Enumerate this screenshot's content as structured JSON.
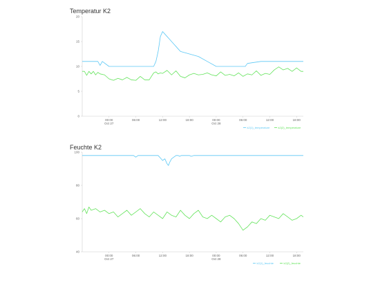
{
  "chart_data": [
    {
      "type": "line",
      "title": "Temperatur K2",
      "ylim": [
        0,
        20
      ],
      "yticks": [
        "0",
        "5",
        "10",
        "15",
        "20"
      ],
      "x_range": [
        "Oct 27 18:00",
        "Oct 28 19:00"
      ],
      "xticks": [
        {
          "label": "00:00",
          "sublabel": "Oct 27"
        },
        {
          "label": "06:00",
          "sublabel": ""
        },
        {
          "label": "12:00",
          "sublabel": ""
        },
        {
          "label": "18:00",
          "sublabel": ""
        },
        {
          "label": "00:00",
          "sublabel": "Oct 28"
        },
        {
          "label": "06:00",
          "sublabel": ""
        },
        {
          "label": "12:00",
          "sublabel": ""
        },
        {
          "label": "18:00",
          "sublabel": ""
        }
      ],
      "grid": false,
      "legend_position": "bottom-right",
      "series": [
        {
          "name": "k2(1)_temperature",
          "color": "#5bc8f5",
          "x_hours": [
            0,
            2.5,
            3.5,
            4.0,
            4.5,
            6.0,
            16.0,
            16.5,
            17.0,
            17.5,
            18.0,
            18.5,
            19.0,
            19.5,
            20.0,
            20.5,
            21.0,
            21.5,
            22.0,
            24.0,
            26.0,
            28.0,
            30.0,
            36.5,
            37.0,
            40.0,
            46.0,
            49.5
          ],
          "values": [
            11,
            11,
            11,
            10.2,
            11,
            10,
            10,
            11,
            13,
            16,
            17,
            16.5,
            16,
            15.5,
            15,
            14.5,
            14,
            13.5,
            13,
            12.5,
            12,
            11,
            10,
            10,
            10.6,
            11,
            11,
            11
          ]
        },
        {
          "name": "k2(2)_temperature",
          "color": "#62e35a",
          "x_hours": [
            0,
            0.5,
            1.0,
            1.5,
            2.0,
            2.5,
            3.0,
            3.5,
            4.0,
            5.0,
            6.0,
            7.0,
            8.0,
            9.0,
            10.0,
            11.0,
            12.0,
            13.0,
            14.0,
            15.0,
            16.0,
            16.5,
            17.0,
            17.5,
            18.0,
            19.0,
            20.0,
            21.0,
            22.0,
            23.0,
            24.0,
            25.0,
            26.0,
            27.0,
            28.0,
            29.0,
            30.0,
            31.0,
            32.0,
            33.0,
            34.0,
            35.0,
            36.0,
            37.0,
            38.0,
            39.0,
            40.0,
            41.0,
            42.0,
            43.0,
            44.0,
            45.0,
            46.0,
            47.0,
            48.0,
            49.0,
            49.5
          ],
          "values": [
            9,
            9,
            8.2,
            9,
            8.5,
            9,
            8.3,
            8.8,
            8.5,
            8.3,
            7.5,
            7.2,
            7.6,
            7.3,
            7.8,
            7.3,
            7.2,
            8,
            7.3,
            7.3,
            8.7,
            8.9,
            8.5,
            8.7,
            8.6,
            9.2,
            8.3,
            9.1,
            8.0,
            7.7,
            8.3,
            8.6,
            8.3,
            8.4,
            8.7,
            8.3,
            8.1,
            8.9,
            8.2,
            8.4,
            8.1,
            8.7,
            8.0,
            8.5,
            8.3,
            9.1,
            8.2,
            8.6,
            8.4,
            9.3,
            9.9,
            9.3,
            9.6,
            9.0,
            9.7,
            9.0,
            9.0
          ]
        }
      ]
    },
    {
      "type": "line",
      "title": "Feuchte K2",
      "ylim": [
        40,
        100
      ],
      "yticks": [
        "40",
        "60",
        "80",
        "100"
      ],
      "x_range": [
        "Oct 27 18:00",
        "Oct 28 19:00"
      ],
      "xticks": [
        {
          "label": "00:00",
          "sublabel": "Oct 27"
        },
        {
          "label": "06:00",
          "sublabel": ""
        },
        {
          "label": "12:00",
          "sublabel": ""
        },
        {
          "label": "18:00",
          "sublabel": ""
        },
        {
          "label": "00:00",
          "sublabel": "Oct 28"
        },
        {
          "label": "06:00",
          "sublabel": ""
        },
        {
          "label": "12:00",
          "sublabel": ""
        },
        {
          "label": "18:00",
          "sublabel": ""
        }
      ],
      "grid": false,
      "legend_position": "bottom-right",
      "series": [
        {
          "name": "k2(1)_feuchte",
          "color": "#5bc8f5",
          "x_hours": [
            0,
            11.5,
            12.0,
            12.5,
            17.0,
            17.5,
            18.0,
            18.5,
            19.0,
            19.3,
            19.6,
            20.0,
            20.5,
            21.0,
            21.5,
            21.8,
            22.2,
            22.6,
            23.0,
            24.0,
            24.4,
            25.0,
            49.5
          ],
          "values": [
            98,
            98,
            97,
            98,
            98,
            96.5,
            95,
            96,
            93,
            92,
            94,
            96,
            97,
            98,
            98,
            97.5,
            98,
            98,
            98,
            98,
            97.5,
            98,
            98
          ]
        },
        {
          "name": "k2(2)_feuchte",
          "color": "#62e35a",
          "x_hours": [
            0,
            0.5,
            1.0,
            1.5,
            2.0,
            3.0,
            4.0,
            5.0,
            6.0,
            7.0,
            8.0,
            9.0,
            10.0,
            11.0,
            12.0,
            13.0,
            14.0,
            15.0,
            16.0,
            17.0,
            18.0,
            19.0,
            20.0,
            21.0,
            22.0,
            23.0,
            24.0,
            25.0,
            26.0,
            27.0,
            28.0,
            29.0,
            30.0,
            31.0,
            32.0,
            33.0,
            34.0,
            35.0,
            36.0,
            37.0,
            38.0,
            39.0,
            40.0,
            41.0,
            42.0,
            43.0,
            44.0,
            45.0,
            46.0,
            47.0,
            48.0,
            49.0,
            49.5
          ],
          "values": [
            64,
            66,
            63,
            67,
            65,
            66,
            64,
            65,
            63,
            64,
            61,
            63,
            65,
            62,
            64,
            66,
            63,
            61,
            64,
            62,
            60,
            64,
            62,
            61,
            65,
            62,
            60,
            63,
            65,
            61,
            60,
            62,
            60,
            58,
            61,
            62,
            60,
            57,
            53,
            55,
            58,
            57,
            60,
            59,
            62,
            61,
            60,
            63,
            61,
            59,
            60,
            62,
            61
          ]
        }
      ]
    }
  ]
}
